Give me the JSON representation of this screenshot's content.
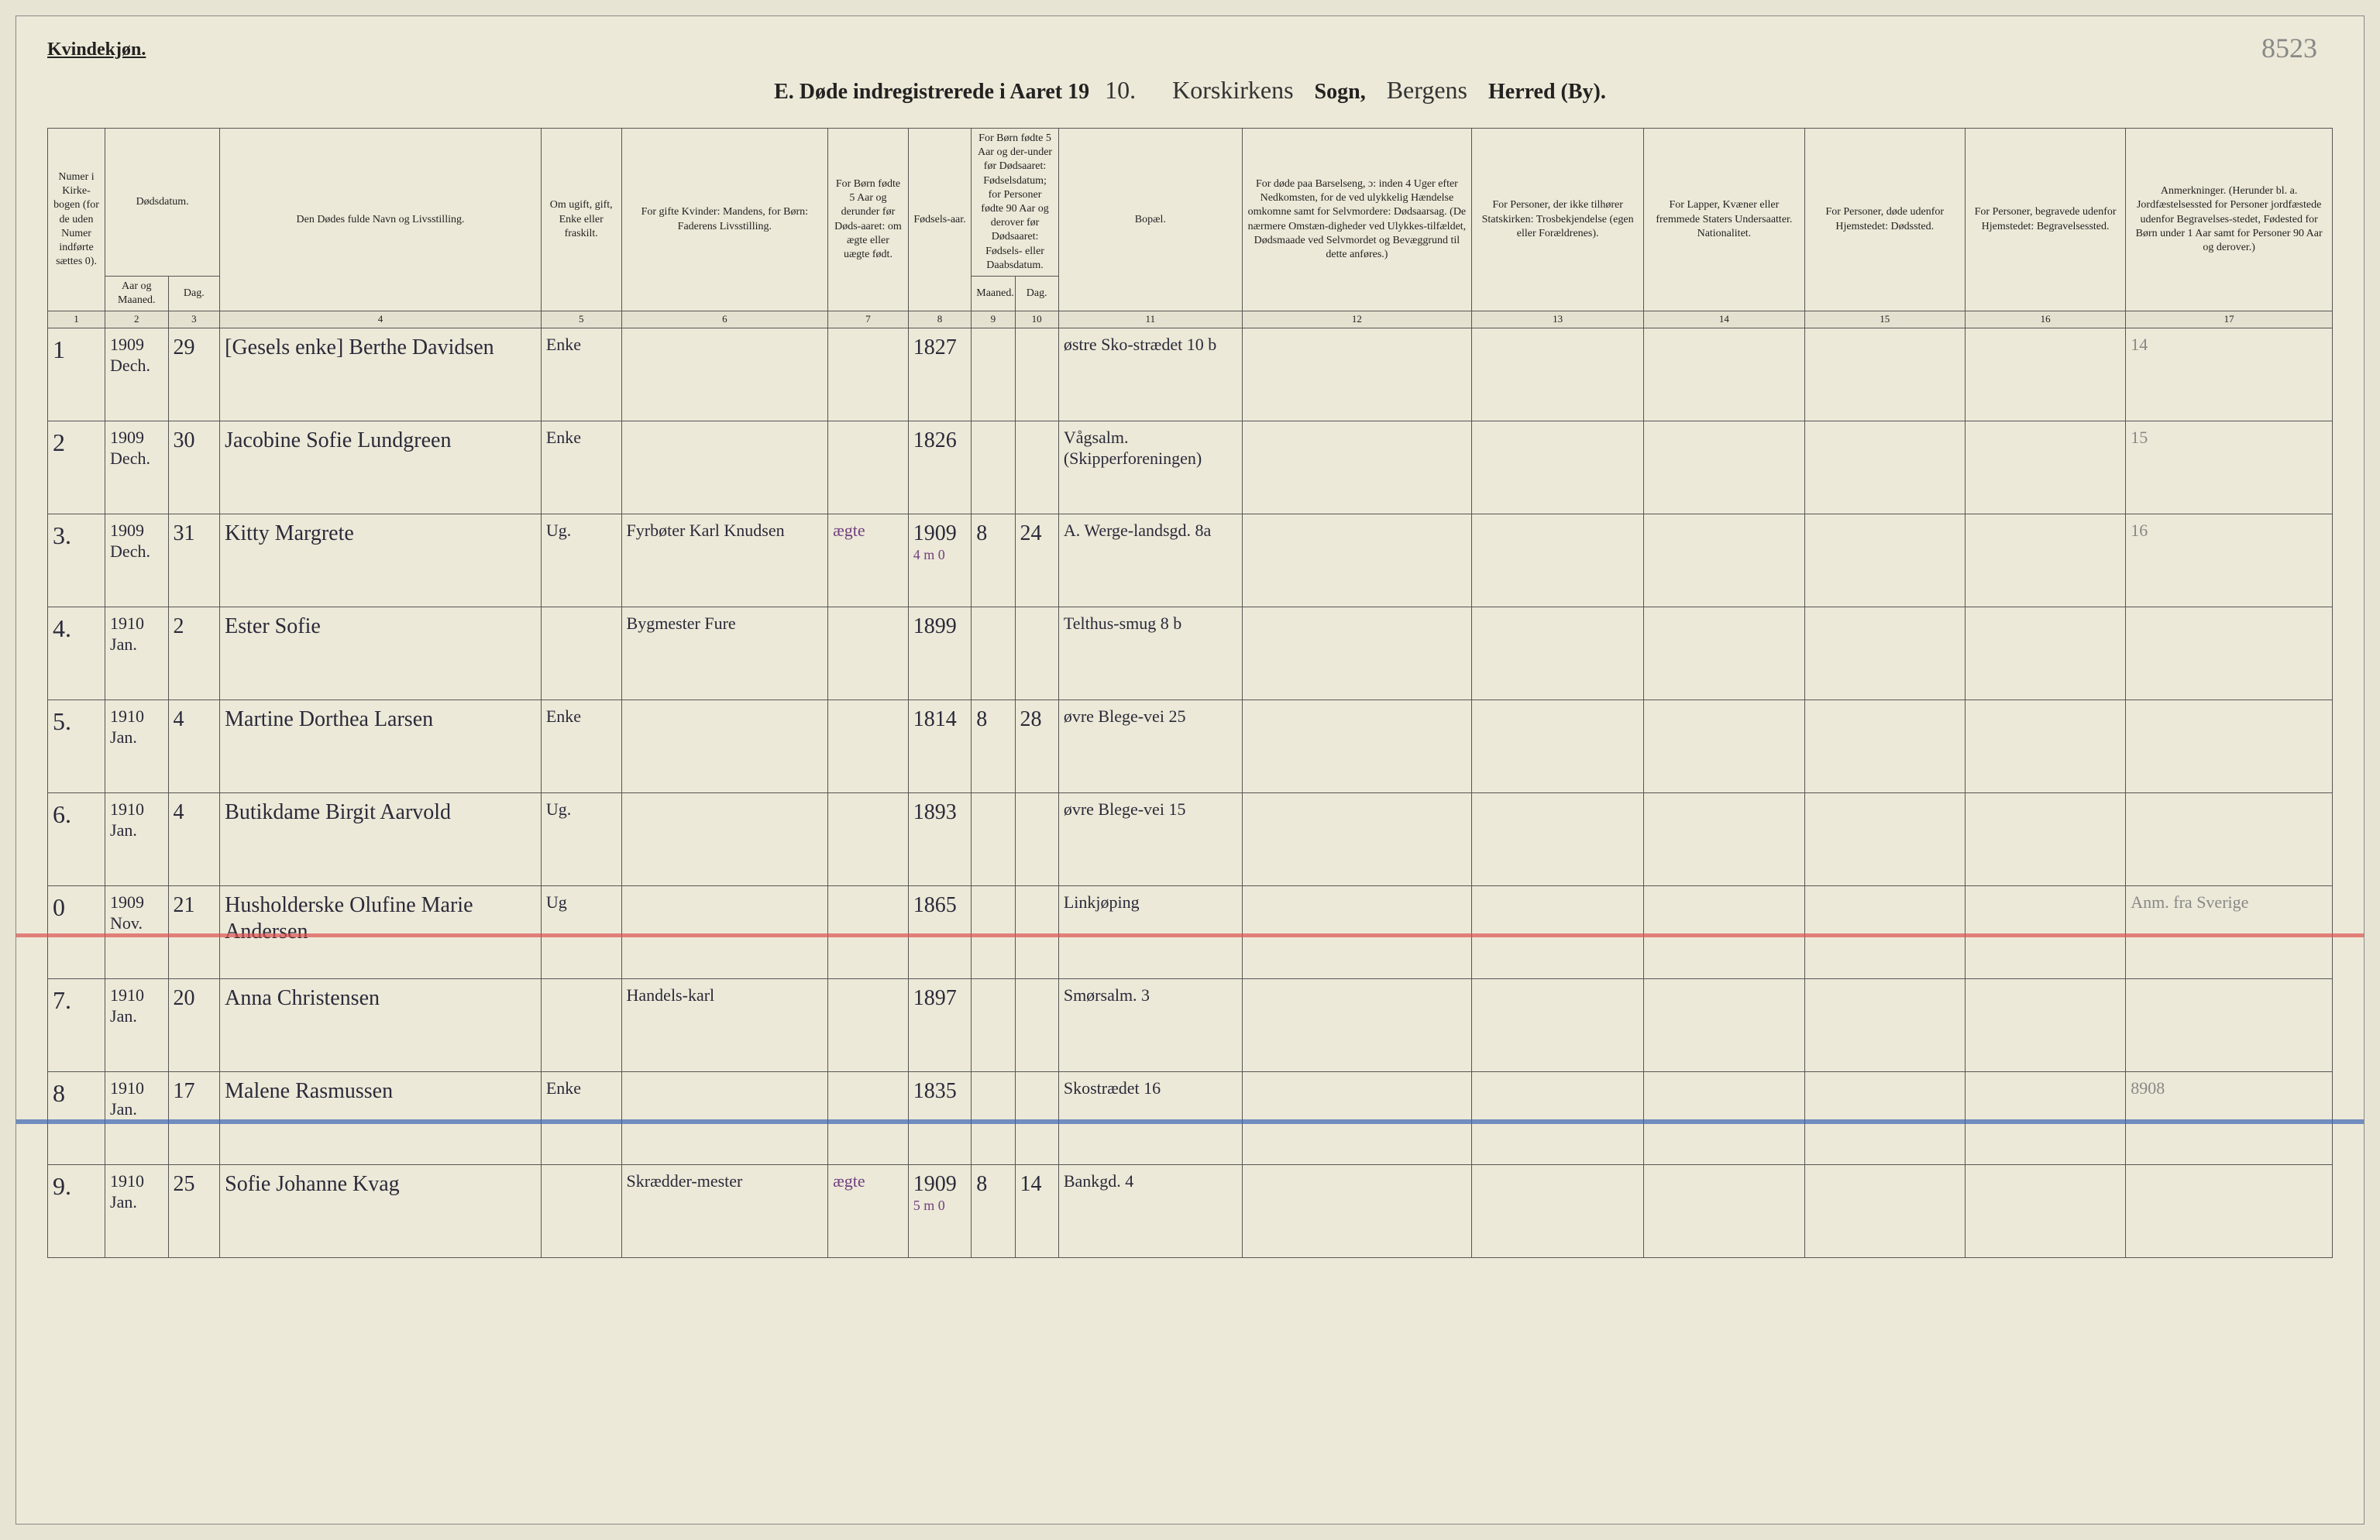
{
  "page_number_annotation": "8523",
  "gender_label": "Kvindekjøn.",
  "title": {
    "prefix": "E.  Døde indregistrerede i Aaret 19",
    "year_suffix": "10.",
    "parish_label": "Sogn,",
    "district_label": "Herred (By).",
    "parish_value": "Korskirkens",
    "district_value": "Bergens"
  },
  "columns": {
    "c1": "Numer i Kirke-bogen (for de uden Numer indførte sættes 0).",
    "c2_3": "Dødsdatum.",
    "c2": "Aar og Maaned.",
    "c3": "Dag.",
    "c4": "Den Dødes fulde Navn og Livsstilling.",
    "c5": "Om ugift, gift, Enke eller fraskilt.",
    "c6": "For gifte Kvinder: Mandens, for Børn: Faderens Livsstilling.",
    "c7": "For Børn fødte 5 Aar og derunder før Døds-aaret: om ægte eller uægte født.",
    "c8": "Fødsels-aar.",
    "c9_10": "For Børn fødte 5 Aar og der-under før Dødsaaret: Fødselsdatum; for Personer fødte 90 Aar og derover før Dødsaaret: Fødsels- eller Daabsdatum.",
    "c9": "Maaned.",
    "c10": "Dag.",
    "c11": "Bopæl.",
    "c12": "For døde paa Barselseng, ɔ: inden 4 Uger efter Nedkomsten, for de ved ulykkelig Hændelse omkomne samt for Selvmordere: Dødsaarsag. (De nærmere Omstæn-digheder ved Ulykkes-tilfældet, Dødsmaade ved Selvmordet og Bevæggrund til dette anføres.)",
    "c13": "For Personer, der ikke tilhører Statskirken: Trosbekjendelse (egen eller Forældrenes).",
    "c14": "For Lapper, Kvæner eller fremmede Staters Undersaatter. Nationalitet.",
    "c15": "For Personer, døde udenfor Hjemstedet: Dødssted.",
    "c16": "For Personer, begravede udenfor Hjemstedet: Begravelsessted.",
    "c17": "Anmerkninger. (Herunder bl. a. Jordfæstelsessted for Personer jordfæstede udenfor Begravelses-stedet, Fødested for Børn under 1 Aar samt for Personer 90 Aar og derover.)"
  },
  "col_numbers": [
    "1",
    "2",
    "3",
    "4",
    "5",
    "6",
    "7",
    "8",
    "9",
    "10",
    "11",
    "12",
    "13",
    "14",
    "15",
    "16",
    "17"
  ],
  "rows": [
    {
      "num": "1",
      "year_month": "1909 Dech.",
      "day": "29",
      "name": "[Gesels enke] Berthe Davidsen",
      "status": "Enke",
      "spouse": "",
      "legit": "",
      "birth_year": "1827",
      "bapt_m": "",
      "bapt_d": "",
      "residence": "østre Sko-strædet 10 b",
      "notes": "14",
      "red_mark": true
    },
    {
      "num": "2",
      "year_month": "1909 Dech.",
      "day": "30",
      "name": "Jacobine Sofie Lundgreen",
      "status": "Enke",
      "spouse": "",
      "legit": "",
      "birth_year": "1826",
      "bapt_m": "",
      "bapt_d": "",
      "residence": "Vågsalm. (Skipperforeningen)",
      "notes": "15",
      "red_mark": true
    },
    {
      "num": "3.",
      "year_month": "1909 Dech.",
      "day": "31",
      "name": "Kitty Margrete",
      "status": "Ug.",
      "spouse": "Fyrbøter Karl Knudsen",
      "legit": "ægte",
      "birth_year": "1909",
      "bapt_m": "8",
      "bapt_d": "24",
      "residence": "A. Werge-landsgd. 8a",
      "age_note": "4 m 0",
      "notes": "16",
      "red_mark": true
    },
    {
      "num": "4.",
      "year_month": "1910 Jan.",
      "day": "2",
      "name": "Ester Sofie",
      "status": "",
      "spouse": "Bygmester Fure",
      "legit": "",
      "birth_year": "1899",
      "bapt_m": "",
      "bapt_d": "",
      "residence": "Telthus-smug 8 b",
      "notes": ""
    },
    {
      "num": "5.",
      "year_month": "1910 Jan.",
      "day": "4",
      "name": "Martine Dorthea Larsen",
      "status": "Enke",
      "spouse": "",
      "legit": "",
      "birth_year": "1814",
      "bapt_m": "8",
      "bapt_d": "28",
      "residence": "øvre Blege-vei 25",
      "notes": ""
    },
    {
      "num": "6.",
      "year_month": "1910 Jan.",
      "day": "4",
      "name": "Butikdame Birgit Aarvold",
      "status": "Ug.",
      "spouse": "",
      "legit": "",
      "birth_year": "1893",
      "bapt_m": "",
      "bapt_d": "",
      "residence": "øvre Blege-vei 15",
      "notes": ""
    },
    {
      "num": "0",
      "year_month": "1909 Nov.",
      "day": "21",
      "name": "Husholderske Olufine Marie Andersen",
      "status": "Ug",
      "spouse": "",
      "legit": "",
      "birth_year": "1865",
      "bapt_m": "",
      "bapt_d": "",
      "residence": "Linkjøping",
      "notes": "Anm. fra Sverige",
      "red_line": true
    },
    {
      "num": "7.",
      "year_month": "1910 Jan.",
      "day": "20",
      "name": "Anna Christensen",
      "status": "",
      "spouse": "Handels-karl",
      "legit": "",
      "birth_year": "1897",
      "bapt_m": "",
      "bapt_d": "",
      "residence": "Smørsalm. 3",
      "notes": ""
    },
    {
      "num": "8",
      "year_month": "1910 Jan.",
      "day": "17",
      "name": "Malene Rasmussen",
      "status": "Enke",
      "spouse": "",
      "legit": "",
      "birth_year": "1835",
      "bapt_m": "",
      "bapt_d": "",
      "residence": "Skostrædet 16",
      "notes": "8908",
      "blue_line": true
    },
    {
      "num": "9.",
      "year_month": "1910 Jan.",
      "day": "25",
      "name": "Sofie Johanne Kvag",
      "status": "",
      "spouse": "Skrædder-mester",
      "legit": "ægte",
      "birth_year": "1909",
      "bapt_m": "8",
      "bapt_d": "14",
      "residence": "Bankgd. 4",
      "age_note": "5 m 0",
      "notes": ""
    }
  ],
  "styling": {
    "background_color": "#ede9d8",
    "border_color": "#555",
    "ink_color": "#2a2a3a",
    "red_color": "#d44444",
    "blue_color": "#3c64b4",
    "purple_color": "#704080",
    "pencil_color": "#888888",
    "header_font_size": 14,
    "body_font_size": 28,
    "title_font_size": 28
  }
}
